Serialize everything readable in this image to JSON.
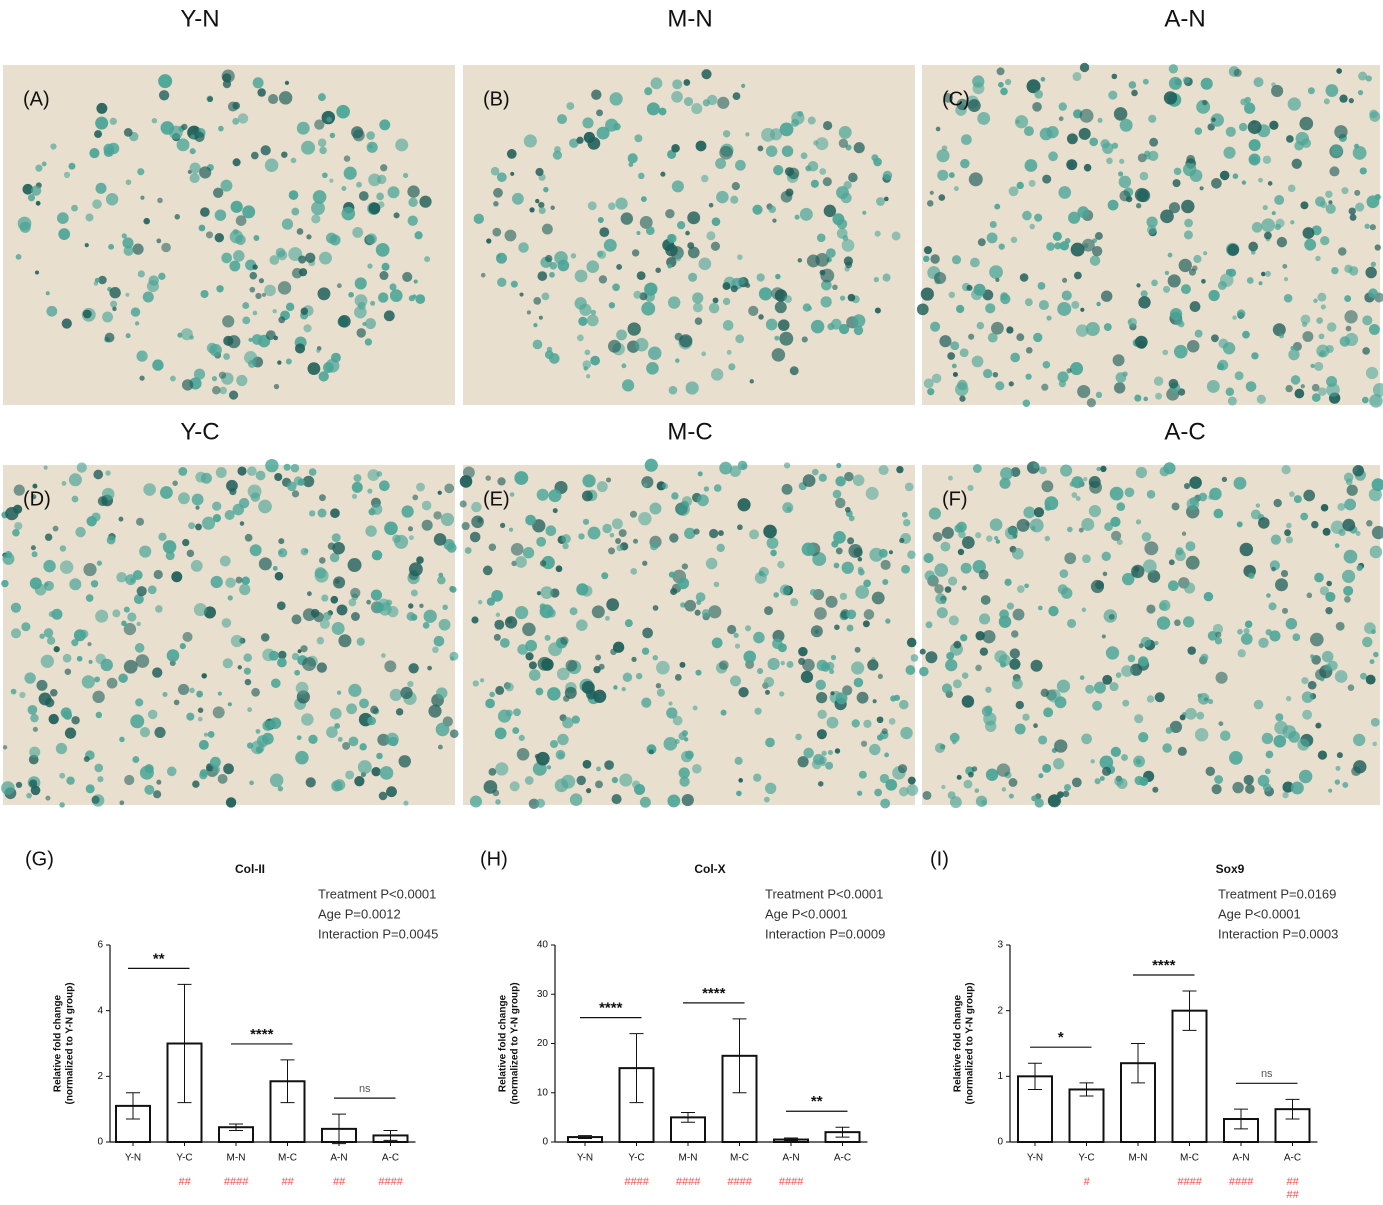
{
  "images": [
    {
      "title": "Y-N",
      "label": "(A)"
    },
    {
      "title": "M-N",
      "label": "(B)"
    },
    {
      "title": "A-N",
      "label": "(C)"
    },
    {
      "title": "Y-C",
      "label": "(D)"
    },
    {
      "title": "M-C",
      "label": "(E)"
    },
    {
      "title": "A-C",
      "label": "(F)"
    }
  ],
  "chart_data": [
    {
      "type": "bar",
      "panel_label": "(G)",
      "title": "Col-II",
      "annotations": [
        "Treatment P<0.0001",
        "Age P=0.0012",
        "Interaction P=0.0045"
      ],
      "y_label": [
        "Relative fold change",
        "(normalized to Y-N group)"
      ],
      "categories": [
        "Y-N",
        "Y-C",
        "M-N",
        "M-C",
        "A-N",
        "A-C"
      ],
      "values": [
        1.1,
        3.0,
        0.45,
        1.85,
        0.4,
        0.2
      ],
      "errors": [
        0.4,
        1.8,
        0.1,
        0.65,
        0.45,
        0.15
      ],
      "significance": [
        "**",
        "****",
        "ns"
      ],
      "hash_labels": [
        null,
        [
          "##"
        ],
        [
          "####"
        ],
        [
          "##"
        ],
        [
          "##"
        ],
        [
          "####"
        ]
      ],
      "color": "#111111",
      "hash_color": "#ff4d4d",
      "ylim": [
        0,
        6
      ],
      "yticks": [
        0,
        2,
        4,
        6
      ]
    },
    {
      "type": "bar",
      "panel_label": "(H)",
      "title": "Col-X",
      "annotations": [
        "Treatment P<0.0001",
        "Age P<0.0001",
        "Interaction P=0.0009"
      ],
      "y_label": [
        "Relative fold change",
        "(normalized to Y-N group)"
      ],
      "categories": [
        "Y-N",
        "Y-C",
        "M-N",
        "M-C",
        "A-N",
        "A-C"
      ],
      "values": [
        1,
        15,
        5,
        17.5,
        0.5,
        2
      ],
      "errors": [
        0.3,
        7,
        1,
        7.5,
        0.3,
        1
      ],
      "significance": [
        "****",
        "****",
        "**"
      ],
      "hash_labels": [
        null,
        [
          "####"
        ],
        [
          "####"
        ],
        [
          "####"
        ],
        [
          "####"
        ],
        null
      ],
      "color": "#111111",
      "hash_color": "#ff4d4d",
      "ylim": [
        0,
        40
      ],
      "yticks": [
        0,
        10,
        20,
        30,
        40
      ]
    },
    {
      "type": "bar",
      "panel_label": "(I)",
      "title": "Sox9",
      "annotations": [
        "Treatment P=0.0169",
        "Age P<0.0001",
        "Interaction P=0.0003"
      ],
      "y_label": [
        "Relative fold change",
        "(normalized to Y-N group)"
      ],
      "categories": [
        "Y-N",
        "Y-C",
        "M-N",
        "M-C",
        "A-N",
        "A-C"
      ],
      "values": [
        1.0,
        0.8,
        1.2,
        2.0,
        0.35,
        0.5
      ],
      "errors": [
        0.2,
        0.1,
        0.3,
        0.3,
        0.15,
        0.15
      ],
      "significance": [
        "*",
        "****",
        "ns"
      ],
      "hash_labels": [
        null,
        [
          "#"
        ],
        null,
        [
          "####"
        ],
        [
          "####"
        ],
        [
          "##",
          "##"
        ]
      ],
      "color": "#111111",
      "hash_color": "#ff4d4d",
      "ylim": [
        0,
        3
      ],
      "yticks": [
        0,
        1,
        2,
        3
      ]
    }
  ]
}
